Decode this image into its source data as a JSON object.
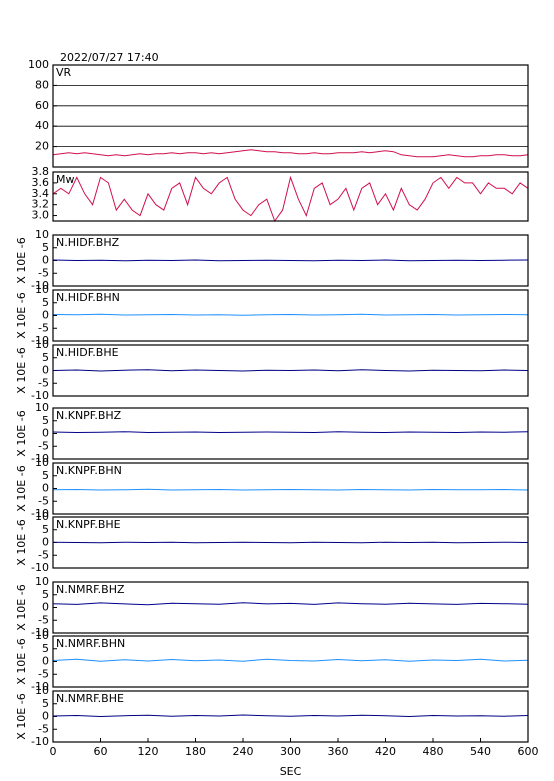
{
  "header": "2022/07/27 17:40",
  "chart_data": [
    {
      "type": "line",
      "title": "VR",
      "xlim": [
        0,
        600
      ],
      "ylim": [
        0,
        100
      ],
      "yticks": [
        20,
        40,
        60,
        80,
        100
      ],
      "grid": true,
      "x": [
        0,
        10,
        20,
        30,
        40,
        50,
        60,
        70,
        80,
        90,
        100,
        110,
        120,
        130,
        140,
        150,
        160,
        170,
        180,
        190,
        200,
        210,
        220,
        230,
        240,
        250,
        260,
        270,
        280,
        290,
        300,
        310,
        320,
        330,
        340,
        350,
        360,
        370,
        380,
        390,
        400,
        410,
        420,
        430,
        440,
        450,
        460,
        470,
        480,
        490,
        500,
        510,
        520,
        530,
        540,
        550,
        560,
        570,
        580,
        590,
        600
      ],
      "series": [
        {
          "color": "#d0104c",
          "values": [
            12,
            13,
            14,
            13,
            14,
            13,
            12,
            11,
            12,
            11,
            12,
            13,
            12,
            13,
            13,
            14,
            13,
            14,
            14,
            13,
            14,
            13,
            14,
            15,
            16,
            17,
            16,
            15,
            15,
            14,
            14,
            13,
            13,
            14,
            13,
            13,
            14,
            14,
            14,
            15,
            14,
            15,
            16,
            15,
            12,
            11,
            10,
            10,
            10,
            11,
            12,
            11,
            10,
            10,
            11,
            11,
            12,
            12,
            11,
            11,
            12
          ]
        }
      ]
    },
    {
      "type": "line",
      "title": "Mw",
      "xlim": [
        0,
        600
      ],
      "ylim": [
        2.9,
        3.8
      ],
      "yticks": [
        {
          "value": 3.0,
          "label": "3.0"
        },
        3.2,
        3.4,
        3.6,
        3.8
      ],
      "grid": false,
      "x": [
        0,
        10,
        20,
        30,
        40,
        50,
        60,
        70,
        80,
        90,
        100,
        110,
        120,
        130,
        140,
        150,
        160,
        170,
        180,
        190,
        200,
        210,
        220,
        230,
        240,
        250,
        260,
        270,
        280,
        290,
        300,
        310,
        320,
        330,
        340,
        350,
        360,
        370,
        380,
        390,
        400,
        410,
        420,
        430,
        440,
        450,
        460,
        470,
        480,
        490,
        500,
        510,
        520,
        530,
        540,
        550,
        560,
        570,
        580,
        590,
        600
      ],
      "series": [
        {
          "color": "#d0104c",
          "values": [
            3.4,
            3.5,
            3.4,
            3.7,
            3.4,
            3.2,
            3.7,
            3.6,
            3.1,
            3.3,
            3.1,
            3.0,
            3.4,
            3.2,
            3.1,
            3.5,
            3.6,
            3.2,
            3.7,
            3.5,
            3.4,
            3.6,
            3.7,
            3.3,
            3.1,
            3.0,
            3.2,
            3.3,
            2.9,
            3.1,
            3.7,
            3.3,
            3.0,
            3.5,
            3.6,
            3.2,
            3.3,
            3.5,
            3.1,
            3.5,
            3.6,
            3.2,
            3.4,
            3.1,
            3.5,
            3.2,
            3.1,
            3.3,
            3.6,
            3.7,
            3.5,
            3.7,
            3.6,
            3.6,
            3.4,
            3.6,
            3.5,
            3.5,
            3.4,
            3.6,
            3.5
          ]
        }
      ]
    },
    {
      "type": "line",
      "title": "N.HIDF.BHZ",
      "ylabel": "X 10E -6",
      "xlim": [
        0,
        600
      ],
      "ylim": [
        -10,
        10
      ],
      "yticks": [
        10,
        5,
        0,
        -5,
        -10
      ],
      "x": [
        0,
        30,
        60,
        90,
        120,
        150,
        180,
        210,
        240,
        270,
        300,
        330,
        360,
        390,
        420,
        450,
        480,
        510,
        540,
        570,
        600
      ],
      "series": [
        {
          "color": "#00008b",
          "values": [
            0.2,
            0,
            0.1,
            -0.1,
            0.1,
            0,
            0.2,
            -0.1,
            0,
            0.1,
            0,
            -0.1,
            0.1,
            0,
            0.2,
            -0.1,
            0,
            0.1,
            0,
            0.1,
            0.2
          ]
        }
      ]
    },
    {
      "type": "line",
      "title": "N.HIDF.BHN",
      "ylabel": "X 10E -6",
      "xlim": [
        0,
        600
      ],
      "ylim": [
        -10,
        10
      ],
      "yticks": [
        10,
        5,
        0,
        -5,
        -10
      ],
      "x": [
        0,
        30,
        60,
        90,
        120,
        150,
        180,
        210,
        240,
        270,
        300,
        330,
        360,
        390,
        420,
        450,
        480,
        510,
        540,
        570,
        600
      ],
      "series": [
        {
          "color": "#1e90ff",
          "values": [
            0.4,
            0.3,
            0.5,
            0.2,
            0.3,
            0.4,
            0.2,
            0.3,
            0.1,
            0.3,
            0.4,
            0.2,
            0.3,
            0.5,
            0.2,
            0.3,
            0.4,
            0.2,
            0.3,
            0.4,
            0.3
          ]
        }
      ]
    },
    {
      "type": "line",
      "title": "N.HIDF.BHE",
      "ylabel": "X 10E -6",
      "xlim": [
        0,
        600
      ],
      "ylim": [
        -10,
        10
      ],
      "yticks": [
        10,
        5,
        0,
        -5,
        -10
      ],
      "x": [
        0,
        30,
        60,
        90,
        120,
        150,
        180,
        210,
        240,
        270,
        300,
        330,
        360,
        390,
        420,
        450,
        480,
        510,
        540,
        570,
        600
      ],
      "series": [
        {
          "color": "#000080",
          "values": [
            0,
            0.2,
            -0.2,
            0.1,
            0.3,
            -0.1,
            0.2,
            0,
            -0.2,
            0.1,
            0,
            0.2,
            -0.1,
            0.3,
            0,
            -0.2,
            0.1,
            0,
            -0.1,
            0.2,
            0
          ]
        }
      ]
    },
    {
      "type": "line",
      "title": "N.KNPF.BHZ",
      "ylabel": "X 10E -6",
      "xlim": [
        0,
        600
      ],
      "ylim": [
        -10,
        10
      ],
      "yticks": [
        10,
        5,
        0,
        -5,
        -10
      ],
      "x": [
        0,
        30,
        60,
        90,
        120,
        150,
        180,
        210,
        240,
        270,
        300,
        330,
        360,
        390,
        420,
        450,
        480,
        510,
        540,
        570,
        600
      ],
      "series": [
        {
          "color": "#00008b",
          "values": [
            0.6,
            0.4,
            0.5,
            0.7,
            0.4,
            0.5,
            0.6,
            0.4,
            0.5,
            0.6,
            0.5,
            0.4,
            0.7,
            0.5,
            0.4,
            0.6,
            0.5,
            0.4,
            0.6,
            0.5,
            0.7
          ]
        }
      ]
    },
    {
      "type": "line",
      "title": "N.KNPF.BHN",
      "ylabel": "X 10E -6",
      "xlim": [
        0,
        600
      ],
      "ylim": [
        -10,
        10
      ],
      "yticks": [
        10,
        5,
        0,
        -5,
        -10
      ],
      "x": [
        0,
        30,
        60,
        90,
        120,
        150,
        180,
        210,
        240,
        270,
        300,
        330,
        360,
        390,
        420,
        450,
        480,
        510,
        540,
        570,
        600
      ],
      "series": [
        {
          "color": "#1e90ff",
          "values": [
            -0.5,
            -0.4,
            -0.6,
            -0.5,
            -0.3,
            -0.6,
            -0.5,
            -0.4,
            -0.6,
            -0.5,
            -0.4,
            -0.5,
            -0.6,
            -0.4,
            -0.5,
            -0.6,
            -0.4,
            -0.5,
            -0.5,
            -0.4,
            -0.6
          ]
        }
      ]
    },
    {
      "type": "line",
      "title": "N.KNPF.BHE",
      "ylabel": "X 10E -6",
      "xlim": [
        0,
        600
      ],
      "ylim": [
        -10,
        10
      ],
      "yticks": [
        10,
        5,
        0,
        -5,
        -10
      ],
      "x": [
        0,
        30,
        60,
        90,
        120,
        150,
        180,
        210,
        240,
        270,
        300,
        330,
        360,
        390,
        420,
        450,
        480,
        510,
        540,
        570,
        600
      ],
      "series": [
        {
          "color": "#000080",
          "values": [
            0.1,
            0,
            -0.1,
            0.1,
            0,
            0.1,
            -0.1,
            0,
            0.1,
            0,
            -0.1,
            0.1,
            0,
            -0.1,
            0.1,
            0,
            0.1,
            -0.1,
            0,
            0.1,
            0
          ]
        }
      ]
    },
    {
      "type": "line",
      "title": "N.NMRF.BHZ",
      "ylabel": "X 10E -6",
      "xlim": [
        0,
        600
      ],
      "ylim": [
        -10,
        10
      ],
      "yticks": [
        10,
        5,
        0,
        -5,
        -10
      ],
      "x": [
        0,
        30,
        60,
        90,
        120,
        150,
        180,
        210,
        240,
        270,
        300,
        330,
        360,
        390,
        420,
        450,
        480,
        510,
        540,
        570,
        600
      ],
      "series": [
        {
          "color": "#00008b",
          "values": [
            1.5,
            1.2,
            1.8,
            1.4,
            1.1,
            1.7,
            1.5,
            1.3,
            1.9,
            1.4,
            1.6,
            1.2,
            1.8,
            1.5,
            1.3,
            1.7,
            1.4,
            1.2,
            1.6,
            1.5,
            1.3
          ]
        }
      ]
    },
    {
      "type": "line",
      "title": "N.NMRF.BHN",
      "ylabel": "X 10E -6",
      "xlim": [
        0,
        600
      ],
      "ylim": [
        -10,
        10
      ],
      "yticks": [
        10,
        5,
        0,
        -5,
        -10
      ],
      "x": [
        0,
        30,
        60,
        90,
        120,
        150,
        180,
        210,
        240,
        270,
        300,
        330,
        360,
        390,
        420,
        450,
        480,
        510,
        540,
        570,
        600
      ],
      "series": [
        {
          "color": "#1e90ff",
          "values": [
            0.4,
            0.9,
            0.1,
            0.7,
            0.2,
            0.8,
            0.3,
            0.6,
            0.1,
            0.9,
            0.4,
            0.2,
            0.8,
            0.3,
            0.7,
            0.1,
            0.6,
            0.4,
            0.9,
            0.2,
            0.5
          ]
        }
      ]
    },
    {
      "type": "line",
      "title": "N.NMRF.BHE",
      "ylabel": "X 10E -6",
      "xlabel": "SEC",
      "xlim": [
        0,
        600
      ],
      "ylim": [
        -10,
        10
      ],
      "yticks": [
        10,
        5,
        0,
        -5,
        -10
      ],
      "xticks": [
        0,
        60,
        120,
        180,
        240,
        300,
        360,
        420,
        480,
        540,
        600
      ],
      "x": [
        0,
        30,
        60,
        90,
        120,
        150,
        180,
        210,
        240,
        270,
        300,
        330,
        360,
        390,
        420,
        450,
        480,
        510,
        540,
        570,
        600
      ],
      "series": [
        {
          "color": "#000080",
          "values": [
            0.2,
            0.4,
            0,
            0.3,
            0.5,
            0.1,
            0.4,
            0.2,
            0.6,
            0.3,
            0.1,
            0.4,
            0.2,
            0.5,
            0.3,
            0,
            0.4,
            0.2,
            0.3,
            0.1,
            0.4
          ]
        }
      ]
    }
  ]
}
